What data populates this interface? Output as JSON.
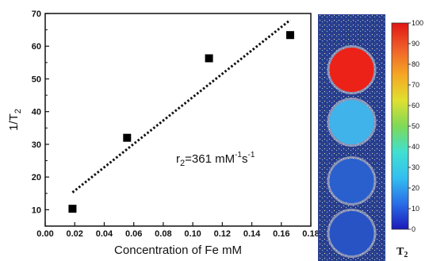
{
  "chart_data": {
    "type": "scatter",
    "xlabel": "Concentration of Fe mM",
    "ylabel": "1/T",
    "ylabel_sub": "2",
    "xlim": [
      0.0,
      0.18
    ],
    "ylim": [
      5,
      70
    ],
    "xticks": [
      "0.00",
      "0.02",
      "0.04",
      "0.06",
      "0.08",
      "0.10",
      "0.12",
      "0.14",
      "0.16",
      "0.18"
    ],
    "yticks": [
      "10",
      "20",
      "30",
      "40",
      "50",
      "60",
      "70"
    ],
    "x": [
      0.0185,
      0.0555,
      0.111,
      0.166
    ],
    "y": [
      10.3,
      32.0,
      56.3,
      63.4
    ],
    "fit": {
      "x": [
        0.0185,
        0.166
      ],
      "y": [
        15.3,
        68.0
      ]
    },
    "annotation": {
      "r": "r",
      "r_sub": "2",
      "value": "=361 mM",
      "sup1": "-1",
      "s": "s",
      "sup2": "-1"
    },
    "colorbar": {
      "ticks": [
        "0",
        "10",
        "20",
        "30",
        "40",
        "50",
        "60",
        "70",
        "80",
        "90",
        "100"
      ],
      "label": "T",
      "label_sub": "2",
      "range": [
        0,
        100
      ],
      "colors": [
        "#1c1ab8",
        "#2a6ee8",
        "#33bff0",
        "#40e0d0",
        "#7ed957",
        "#e0e030",
        "#f5a623",
        "#f0602a",
        "#e01515"
      ]
    },
    "phantoms": [
      {
        "value": 100,
        "color": "#ec2218"
      },
      {
        "value": 38,
        "color": "#3fb3ea"
      },
      {
        "value": 14,
        "color": "#2a5fce"
      },
      {
        "value": 10,
        "color": "#2753c4"
      }
    ]
  }
}
